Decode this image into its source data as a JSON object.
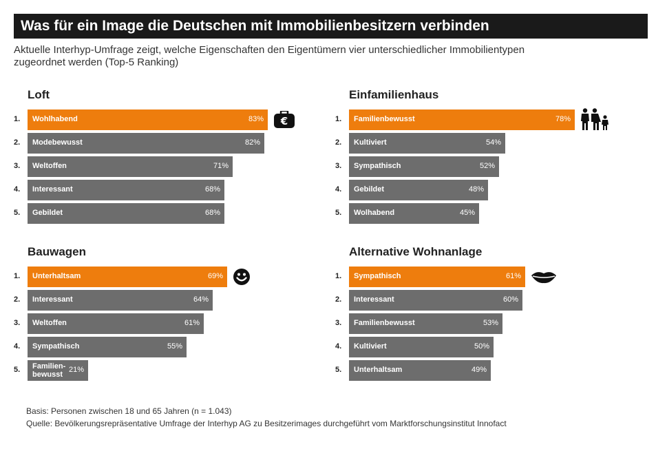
{
  "header": {
    "title": "Was für ein Image die Deutschen mit Immobilienbesitzern verbinden",
    "subtitle_line1": "Aktuelle Interhyp-Umfrage zeigt, welche Eigenschaften den Eigentümern vier unterschiedlicher Immobilientypen",
    "subtitle_line2": "zugeordnet werden (Top-5 Ranking)"
  },
  "colors": {
    "highlight": "#ee7d0d",
    "bar": "#6d6d6d",
    "title_bg": "#1a1a1a"
  },
  "chart_data": [
    {
      "type": "bar",
      "title": "Loft",
      "icon": "euro-wallet-icon",
      "ranks": [
        "1.",
        "2.",
        "3.",
        "4.",
        "5."
      ],
      "categories": [
        "Wohlhabend",
        "Modebewusst",
        "Weltoffen",
        "Interessant",
        "Gebildet"
      ],
      "values": [
        83,
        82,
        71,
        68,
        68
      ],
      "value_labels": [
        "83%",
        "82%",
        "71%",
        "68%",
        "68%"
      ],
      "orientation": "horizontal"
    },
    {
      "type": "bar",
      "title": "Einfamilienhaus",
      "icon": "family-icon",
      "ranks": [
        "1.",
        "2.",
        "3.",
        "4.",
        "5."
      ],
      "categories": [
        "Familienbewusst",
        "Kultiviert",
        "Sympathisch",
        "Gebildet",
        "Wolhabend"
      ],
      "values": [
        78,
        54,
        52,
        48,
        45
      ],
      "value_labels": [
        "78%",
        "54%",
        "52%",
        "48%",
        "45%"
      ],
      "orientation": "horizontal"
    },
    {
      "type": "bar",
      "title": "Bauwagen",
      "icon": "smiley-icon",
      "ranks": [
        "1.",
        "2.",
        "3.",
        "4.",
        "5."
      ],
      "categories": [
        "Unterhaltsam",
        "Interessant",
        "Weltoffen",
        "Sympathisch",
        "Familien-\nbewusst"
      ],
      "values": [
        69,
        64,
        61,
        55,
        21
      ],
      "value_labels": [
        "69%",
        "64%",
        "61%",
        "55%",
        "21%"
      ],
      "orientation": "horizontal"
    },
    {
      "type": "bar",
      "title": "Alternative Wohnanlage",
      "icon": "lips-icon",
      "ranks": [
        "1.",
        "2.",
        "3.",
        "4.",
        "5."
      ],
      "categories": [
        "Sympathisch",
        "Interessant",
        "Familienbewusst",
        "Kultiviert",
        "Unterhaltsam"
      ],
      "values": [
        61,
        60,
        53,
        50,
        49
      ],
      "value_labels": [
        "61%",
        "60%",
        "53%",
        "50%",
        "49%"
      ],
      "orientation": "horizontal"
    }
  ],
  "footer": {
    "basis": "Basis: Personen zwischen 18 und 65 Jahren (n = 1.043)",
    "source": "Quelle: Bevölkerungsrepräsentative Umfrage der Interhyp AG zu Besitzerimages durchgeführt vom Marktforschungsinstitut Innofact"
  }
}
